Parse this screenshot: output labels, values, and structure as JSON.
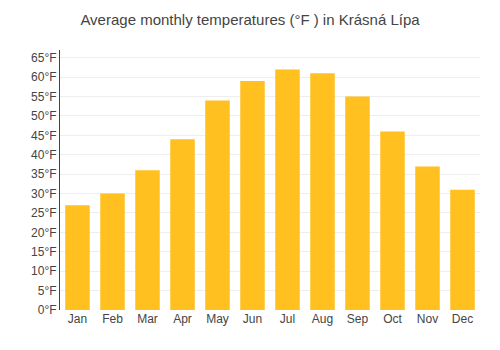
{
  "chart_data": {
    "type": "bar",
    "title": "Average monthly temperatures (°F ) in Krásná Lípa",
    "categories": [
      "Jan",
      "Feb",
      "Mar",
      "Apr",
      "May",
      "Jun",
      "Jul",
      "Aug",
      "Sep",
      "Oct",
      "Nov",
      "Dec"
    ],
    "values": [
      27,
      30,
      36,
      44,
      54,
      59,
      62,
      61,
      55,
      46,
      37,
      31
    ],
    "color": "#FFC020",
    "ylim": [
      0,
      67
    ],
    "yticks": [
      {
        "value": 0,
        "label": "0°F"
      },
      {
        "value": 5,
        "label": "5°F"
      },
      {
        "value": 10,
        "label": "10°F"
      },
      {
        "value": 15,
        "label": "15°F"
      },
      {
        "value": 20,
        "label": "20°F"
      },
      {
        "value": 25,
        "label": "25°F"
      },
      {
        "value": 30,
        "label": "30°F"
      },
      {
        "value": 35,
        "label": "35°F"
      },
      {
        "value": 40,
        "label": "40°F"
      },
      {
        "value": 45,
        "label": "45°F"
      },
      {
        "value": 50,
        "label": "50°F"
      },
      {
        "value": 55,
        "label": "55°F"
      },
      {
        "value": 60,
        "label": "60°F"
      },
      {
        "value": 65,
        "label": "65°F"
      }
    ],
    "grid": true
  }
}
